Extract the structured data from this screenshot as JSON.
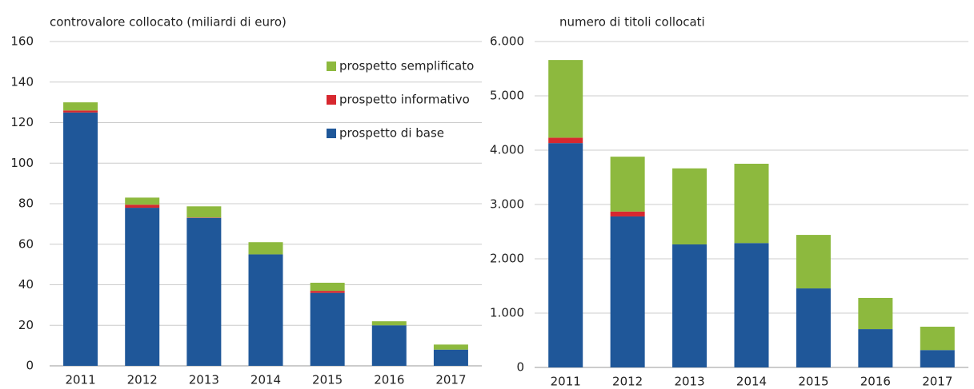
{
  "chart_data": [
    {
      "type": "stacked_bar",
      "title": "controvalore collocato (miliardi di euro)",
      "categories": [
        "2011",
        "2012",
        "2013",
        "2014",
        "2015",
        "2016",
        "2017"
      ],
      "series": [
        {
          "name": "prospetto di base",
          "color": "#1f5799",
          "values": [
            125,
            78,
            73,
            55,
            36,
            20,
            8
          ]
        },
        {
          "name": "prospetto informativo",
          "color": "#d7282f",
          "values": [
            1,
            1.5,
            0.2,
            0,
            1,
            0,
            0
          ]
        },
        {
          "name": "prospetto semplificato",
          "color": "#8db93e",
          "values": [
            4,
            3.5,
            5.5,
            6,
            4,
            2,
            2.5
          ]
        }
      ],
      "ylim": [
        0,
        160
      ],
      "yticks": [
        0,
        20,
        40,
        60,
        80,
        100,
        120,
        140,
        160
      ],
      "grid": true,
      "legend": "upper right"
    },
    {
      "type": "stacked_bar",
      "title": "numero di titoli collocati",
      "categories": [
        "2011",
        "2012",
        "2013",
        "2014",
        "2015",
        "2016",
        "2017"
      ],
      "series": [
        {
          "color": "#1f5799",
          "values": [
            4130,
            2780,
            2265,
            2290,
            1455,
            705,
            320
          ]
        },
        {
          "color": "#d7282f",
          "values": [
            100,
            90,
            0,
            0,
            0,
            0,
            0
          ]
        },
        {
          "color": "#8db93e",
          "values": [
            1430,
            1010,
            1400,
            1460,
            985,
            575,
            430
          ]
        }
      ],
      "ylim": [
        0,
        6000
      ],
      "yticks": [
        0,
        {
          "value": 1000,
          "label": "1.000"
        },
        {
          "value": 2000,
          "label": "2.000"
        },
        {
          "value": 3000,
          "label": "3.000"
        },
        {
          "value": 4000,
          "label": "4.000"
        },
        {
          "value": 5000,
          "label": "5.000"
        },
        {
          "value": 6000,
          "label": "6.000"
        }
      ],
      "grid": true
    }
  ]
}
